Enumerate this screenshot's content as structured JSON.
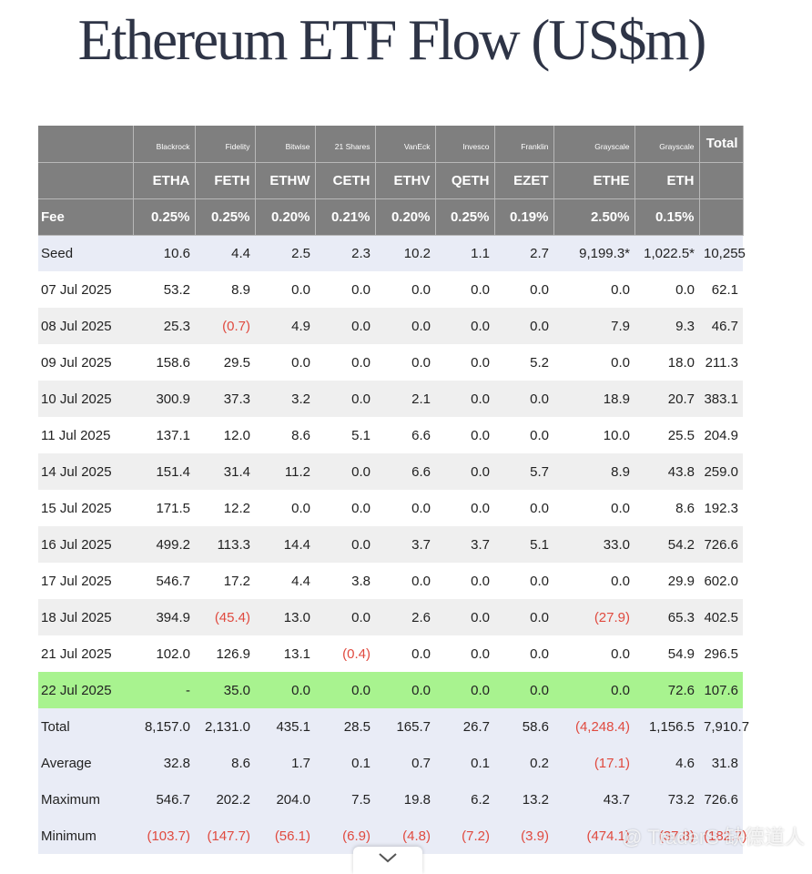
{
  "title": "Ethereum ETF Flow (US$m)",
  "header": {
    "providers": [
      "",
      "Blackrock",
      "Fidelity",
      "Bitwise",
      "21 Shares",
      "VanEck",
      "Invesco",
      "Franklin",
      "Grayscale",
      "Grayscale",
      "Total"
    ],
    "tickers": [
      "",
      "ETHA",
      "FETH",
      "ETHW",
      "CETH",
      "ETHV",
      "QETH",
      "EZET",
      "ETHE",
      "ETH",
      ""
    ],
    "fees": [
      "Fee",
      "0.25%",
      "0.25%",
      "0.20%",
      "0.21%",
      "0.20%",
      "0.25%",
      "0.19%",
      "2.50%",
      "0.15%",
      ""
    ]
  },
  "rows": [
    {
      "kind": "seed",
      "cells": [
        "Seed",
        "10.6",
        "4.4",
        "2.5",
        "2.3",
        "10.2",
        "1.1",
        "2.7",
        "9,199.3*",
        "1,022.5*",
        "10,255"
      ]
    },
    {
      "kind": "plain",
      "cells": [
        "07 Jul 2025",
        "53.2",
        "8.9",
        "0.0",
        "0.0",
        "0.0",
        "0.0",
        "0.0",
        "0.0",
        "0.0",
        "62.1"
      ]
    },
    {
      "kind": "alt",
      "cells": [
        "08 Jul 2025",
        "25.3",
        "(0.7)",
        "4.9",
        "0.0",
        "0.0",
        "0.0",
        "0.0",
        "7.9",
        "9.3",
        "46.7"
      ]
    },
    {
      "kind": "plain",
      "cells": [
        "09 Jul 2025",
        "158.6",
        "29.5",
        "0.0",
        "0.0",
        "0.0",
        "0.0",
        "5.2",
        "0.0",
        "18.0",
        "211.3"
      ]
    },
    {
      "kind": "alt",
      "cells": [
        "10 Jul 2025",
        "300.9",
        "37.3",
        "3.2",
        "0.0",
        "2.1",
        "0.0",
        "0.0",
        "18.9",
        "20.7",
        "383.1"
      ]
    },
    {
      "kind": "plain",
      "cells": [
        "11 Jul 2025",
        "137.1",
        "12.0",
        "8.6",
        "5.1",
        "6.6",
        "0.0",
        "0.0",
        "10.0",
        "25.5",
        "204.9"
      ]
    },
    {
      "kind": "alt",
      "cells": [
        "14 Jul 2025",
        "151.4",
        "31.4",
        "11.2",
        "0.0",
        "6.6",
        "0.0",
        "5.7",
        "8.9",
        "43.8",
        "259.0"
      ]
    },
    {
      "kind": "plain",
      "cells": [
        "15 Jul 2025",
        "171.5",
        "12.2",
        "0.0",
        "0.0",
        "0.0",
        "0.0",
        "0.0",
        "0.0",
        "8.6",
        "192.3"
      ]
    },
    {
      "kind": "alt",
      "cells": [
        "16 Jul 2025",
        "499.2",
        "113.3",
        "14.4",
        "0.0",
        "3.7",
        "3.7",
        "5.1",
        "33.0",
        "54.2",
        "726.6"
      ]
    },
    {
      "kind": "plain",
      "cells": [
        "17 Jul 2025",
        "546.7",
        "17.2",
        "4.4",
        "3.8",
        "0.0",
        "0.0",
        "0.0",
        "0.0",
        "29.9",
        "602.0"
      ]
    },
    {
      "kind": "alt",
      "cells": [
        "18 Jul 2025",
        "394.9",
        "(45.4)",
        "13.0",
        "0.0",
        "2.6",
        "0.0",
        "0.0",
        "(27.9)",
        "65.3",
        "402.5"
      ]
    },
    {
      "kind": "plain",
      "cells": [
        "21 Jul 2025",
        "102.0",
        "126.9",
        "13.1",
        "(0.4)",
        "0.0",
        "0.0",
        "0.0",
        "0.0",
        "54.9",
        "296.5"
      ]
    },
    {
      "kind": "today",
      "cells": [
        "22 Jul 2025",
        "-",
        "35.0",
        "0.0",
        "0.0",
        "0.0",
        "0.0",
        "0.0",
        "0.0",
        "72.6",
        "107.6"
      ]
    },
    {
      "kind": "stat",
      "cells": [
        "Total",
        "8,157.0",
        "2,131.0",
        "435.1",
        "28.5",
        "165.7",
        "26.7",
        "58.6",
        "(4,248.4)",
        "1,156.5",
        "7,910.7"
      ]
    },
    {
      "kind": "stat",
      "cells": [
        "Average",
        "32.8",
        "8.6",
        "1.7",
        "0.1",
        "0.7",
        "0.1",
        "0.2",
        "(17.1)",
        "4.6",
        "31.8"
      ]
    },
    {
      "kind": "stat",
      "cells": [
        "Maximum",
        "546.7",
        "202.2",
        "204.0",
        "7.5",
        "19.8",
        "6.2",
        "13.2",
        "43.7",
        "73.2",
        "726.6"
      ]
    },
    {
      "kind": "stat",
      "cells": [
        "Minimum",
        "(103.7)",
        "(147.7)",
        "(56.1)",
        "(6.9)",
        "(4.8)",
        "(7.2)",
        "(3.9)",
        "(474.1)",
        "(37.8)",
        "(182.7)"
      ]
    }
  ],
  "watermark": "@ TraderS 缺德道人",
  "colors": {
    "header_bg": "#7f7f7f",
    "negative": "#e04a3f",
    "today_highlight": "#a8f38f",
    "stat_bg": "#e9ecf6"
  }
}
